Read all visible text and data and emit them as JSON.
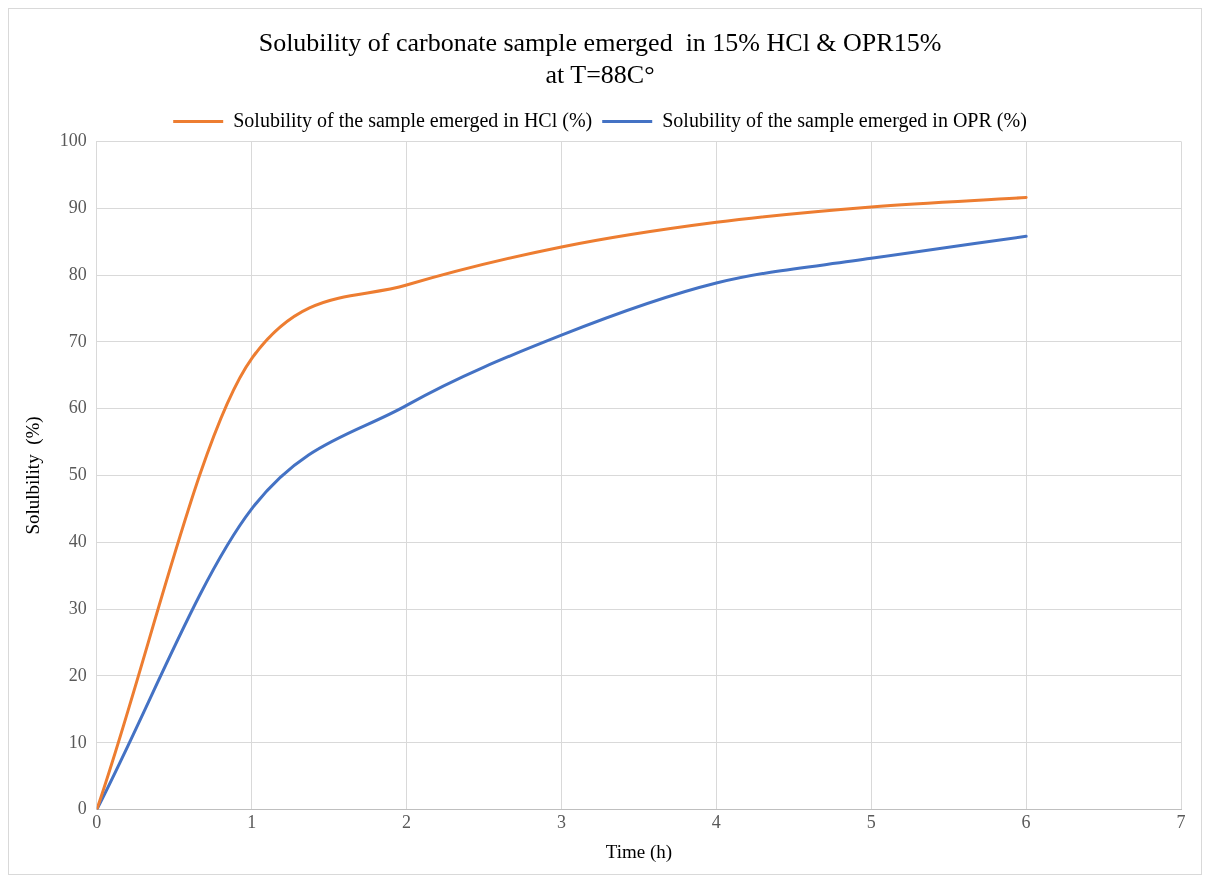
{
  "chart_data": {
    "type": "line",
    "title": "Solubility of carbonate sample emerged  in 15% HCl & OPR15%\nat T=88C°",
    "xlabel": "Time (h)",
    "ylabel": "Solulbility  (%)",
    "x": [
      0,
      1,
      2,
      3,
      4,
      5,
      6
    ],
    "series": [
      {
        "name": "Solubility of the sample emerged in HCl (%)",
        "color": "#ed7d31",
        "values": [
          0,
          67.5,
          78.5,
          84.2,
          87.9,
          90.2,
          91.6
        ]
      },
      {
        "name": "Solubility of the sample emerged in OPR (%)",
        "color": "#4472c4",
        "values": [
          0,
          45,
          60.5,
          71,
          78.8,
          82.5,
          85.8
        ]
      }
    ],
    "xlim": [
      0,
      7
    ],
    "xticks": [
      0,
      1,
      2,
      3,
      4,
      5,
      6,
      7
    ],
    "ylim": [
      0,
      100
    ],
    "yticks": [
      0,
      10,
      20,
      30,
      40,
      50,
      60,
      70,
      80,
      90,
      100
    ],
    "grid": true,
    "legend": "top",
    "marker": "none",
    "line_style": "solid"
  }
}
